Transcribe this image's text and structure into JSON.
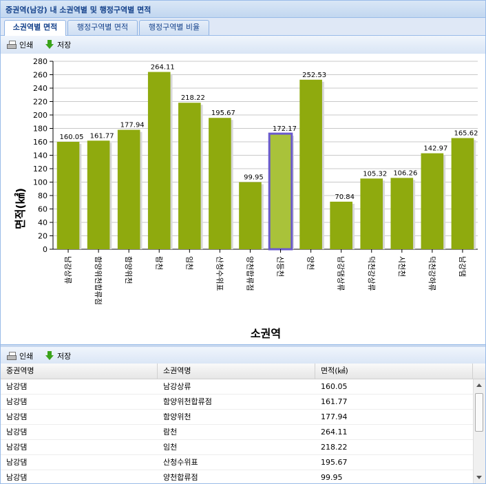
{
  "window": {
    "title": "중권역(남강) 내 소권역별 및 행정구역별 면적"
  },
  "tabs": [
    {
      "label": "소권역별 면적",
      "active": true
    },
    {
      "label": "행정구역별 면적",
      "active": false
    },
    {
      "label": "행정구역별 비율",
      "active": false
    }
  ],
  "toolbar": {
    "print_label": "인쇄",
    "save_label": "저장"
  },
  "colors": {
    "bar": "#8faa0e",
    "bar_highlight": "#a9c23a",
    "highlight_border": "#6a5acd"
  },
  "chart_data": {
    "type": "bar",
    "title": "",
    "xlabel": "소권역",
    "ylabel": "면적(㎢)",
    "ylim": [
      0,
      280
    ],
    "yticks": [
      0,
      20,
      40,
      60,
      80,
      100,
      120,
      140,
      160,
      180,
      200,
      220,
      240,
      260,
      280
    ],
    "grid": true,
    "categories": [
      "남강상류",
      "함양위천합류점",
      "함양위천",
      "람천",
      "임천",
      "산청수위표",
      "양천합류점",
      "신등천",
      "양천",
      "남강댐상류",
      "덕천강상류",
      "시천천",
      "덕천강하류",
      "남강댐"
    ],
    "values": [
      160.05,
      161.77,
      177.94,
      264.11,
      218.22,
      195.67,
      99.95,
      172.17,
      252.53,
      70.84,
      105.32,
      106.26,
      142.97,
      165.62
    ],
    "labels": [
      "160.05",
      "161.77",
      "177.94",
      "264.11",
      "218.22",
      "195.67",
      "99.95",
      "172.17",
      "252.53",
      "70.84",
      "105.32",
      "106.26",
      "142.97",
      "165.62"
    ],
    "highlight_index": 7
  },
  "table": {
    "columns": [
      "중권역명",
      "소권역명",
      "면적(㎢)"
    ],
    "rows": [
      [
        "남강댐",
        "남강상류",
        "160.05"
      ],
      [
        "남강댐",
        "함양위천합류점",
        "161.77"
      ],
      [
        "남강댐",
        "함양위천",
        "177.94"
      ],
      [
        "남강댐",
        "람천",
        "264.11"
      ],
      [
        "남강댐",
        "임천",
        "218.22"
      ],
      [
        "남강댐",
        "산청수위표",
        "195.67"
      ],
      [
        "남강댐",
        "양천합류점",
        "99.95"
      ]
    ]
  }
}
